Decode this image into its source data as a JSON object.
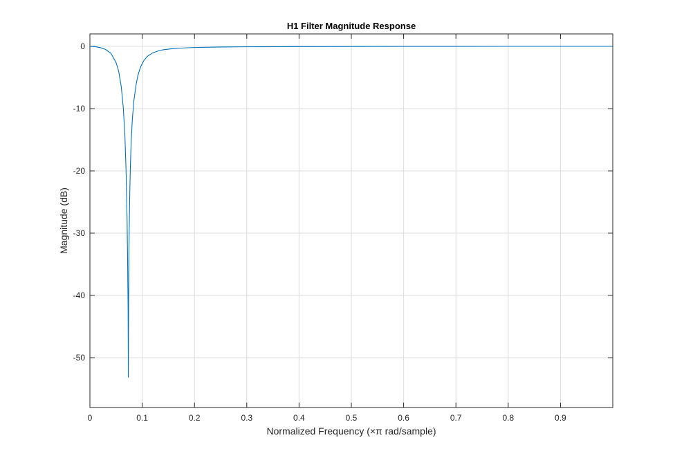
{
  "chart_data": {
    "type": "line",
    "title": "H1 Filter Magnitude Response",
    "xlabel": "Normalized Frequency (×π rad/sample)",
    "ylabel": "Magnitude (dB)",
    "xlim": [
      0,
      1
    ],
    "ylim": [
      -58,
      2
    ],
    "xticks": [
      0,
      0.1,
      0.2,
      0.3,
      0.4,
      0.5,
      0.6,
      0.7,
      0.8,
      0.9
    ],
    "xtick_labels": [
      "0",
      "0.1",
      "0.2",
      "0.3",
      "0.4",
      "0.5",
      "0.6",
      "0.7",
      "0.8",
      "0.9"
    ],
    "yticks": [
      0,
      -10,
      -20,
      -30,
      -40,
      -50
    ],
    "ytick_labels": [
      "0",
      "-10",
      "-20",
      "-30",
      "-40",
      "-50"
    ],
    "grid": true,
    "series": [
      {
        "color": "#0072bd",
        "x": [
          0,
          0.01,
          0.02,
          0.03,
          0.04,
          0.05,
          0.055,
          0.06,
          0.064,
          0.067,
          0.069,
          0.071,
          0.072,
          0.073,
          0.0735,
          0.074,
          0.0745,
          0.0755,
          0.0765,
          0.0775,
          0.079,
          0.081,
          0.084,
          0.088,
          0.092,
          0.097,
          0.103,
          0.11,
          0.12,
          0.13,
          0.14,
          0.16,
          0.18,
          0.2,
          0.25,
          0.3,
          0.4,
          0.5,
          0.6,
          0.7,
          0.8,
          0.9,
          1.0
        ],
        "y": [
          0,
          -0.05,
          -0.2,
          -0.5,
          -1.1,
          -2.6,
          -4.0,
          -6.5,
          -10.0,
          -14.5,
          -19.5,
          -27.5,
          -33.5,
          -42.0,
          -53.2,
          -42.0,
          -33.5,
          -27.5,
          -22.5,
          -19.0,
          -15.2,
          -11.9,
          -8.8,
          -6.3,
          -4.6,
          -3.3,
          -2.3,
          -1.6,
          -1.05,
          -0.75,
          -0.55,
          -0.35,
          -0.25,
          -0.18,
          -0.1,
          -0.07,
          -0.04,
          -0.02,
          -0.01,
          -0.01,
          0,
          0,
          0
        ]
      }
    ]
  }
}
